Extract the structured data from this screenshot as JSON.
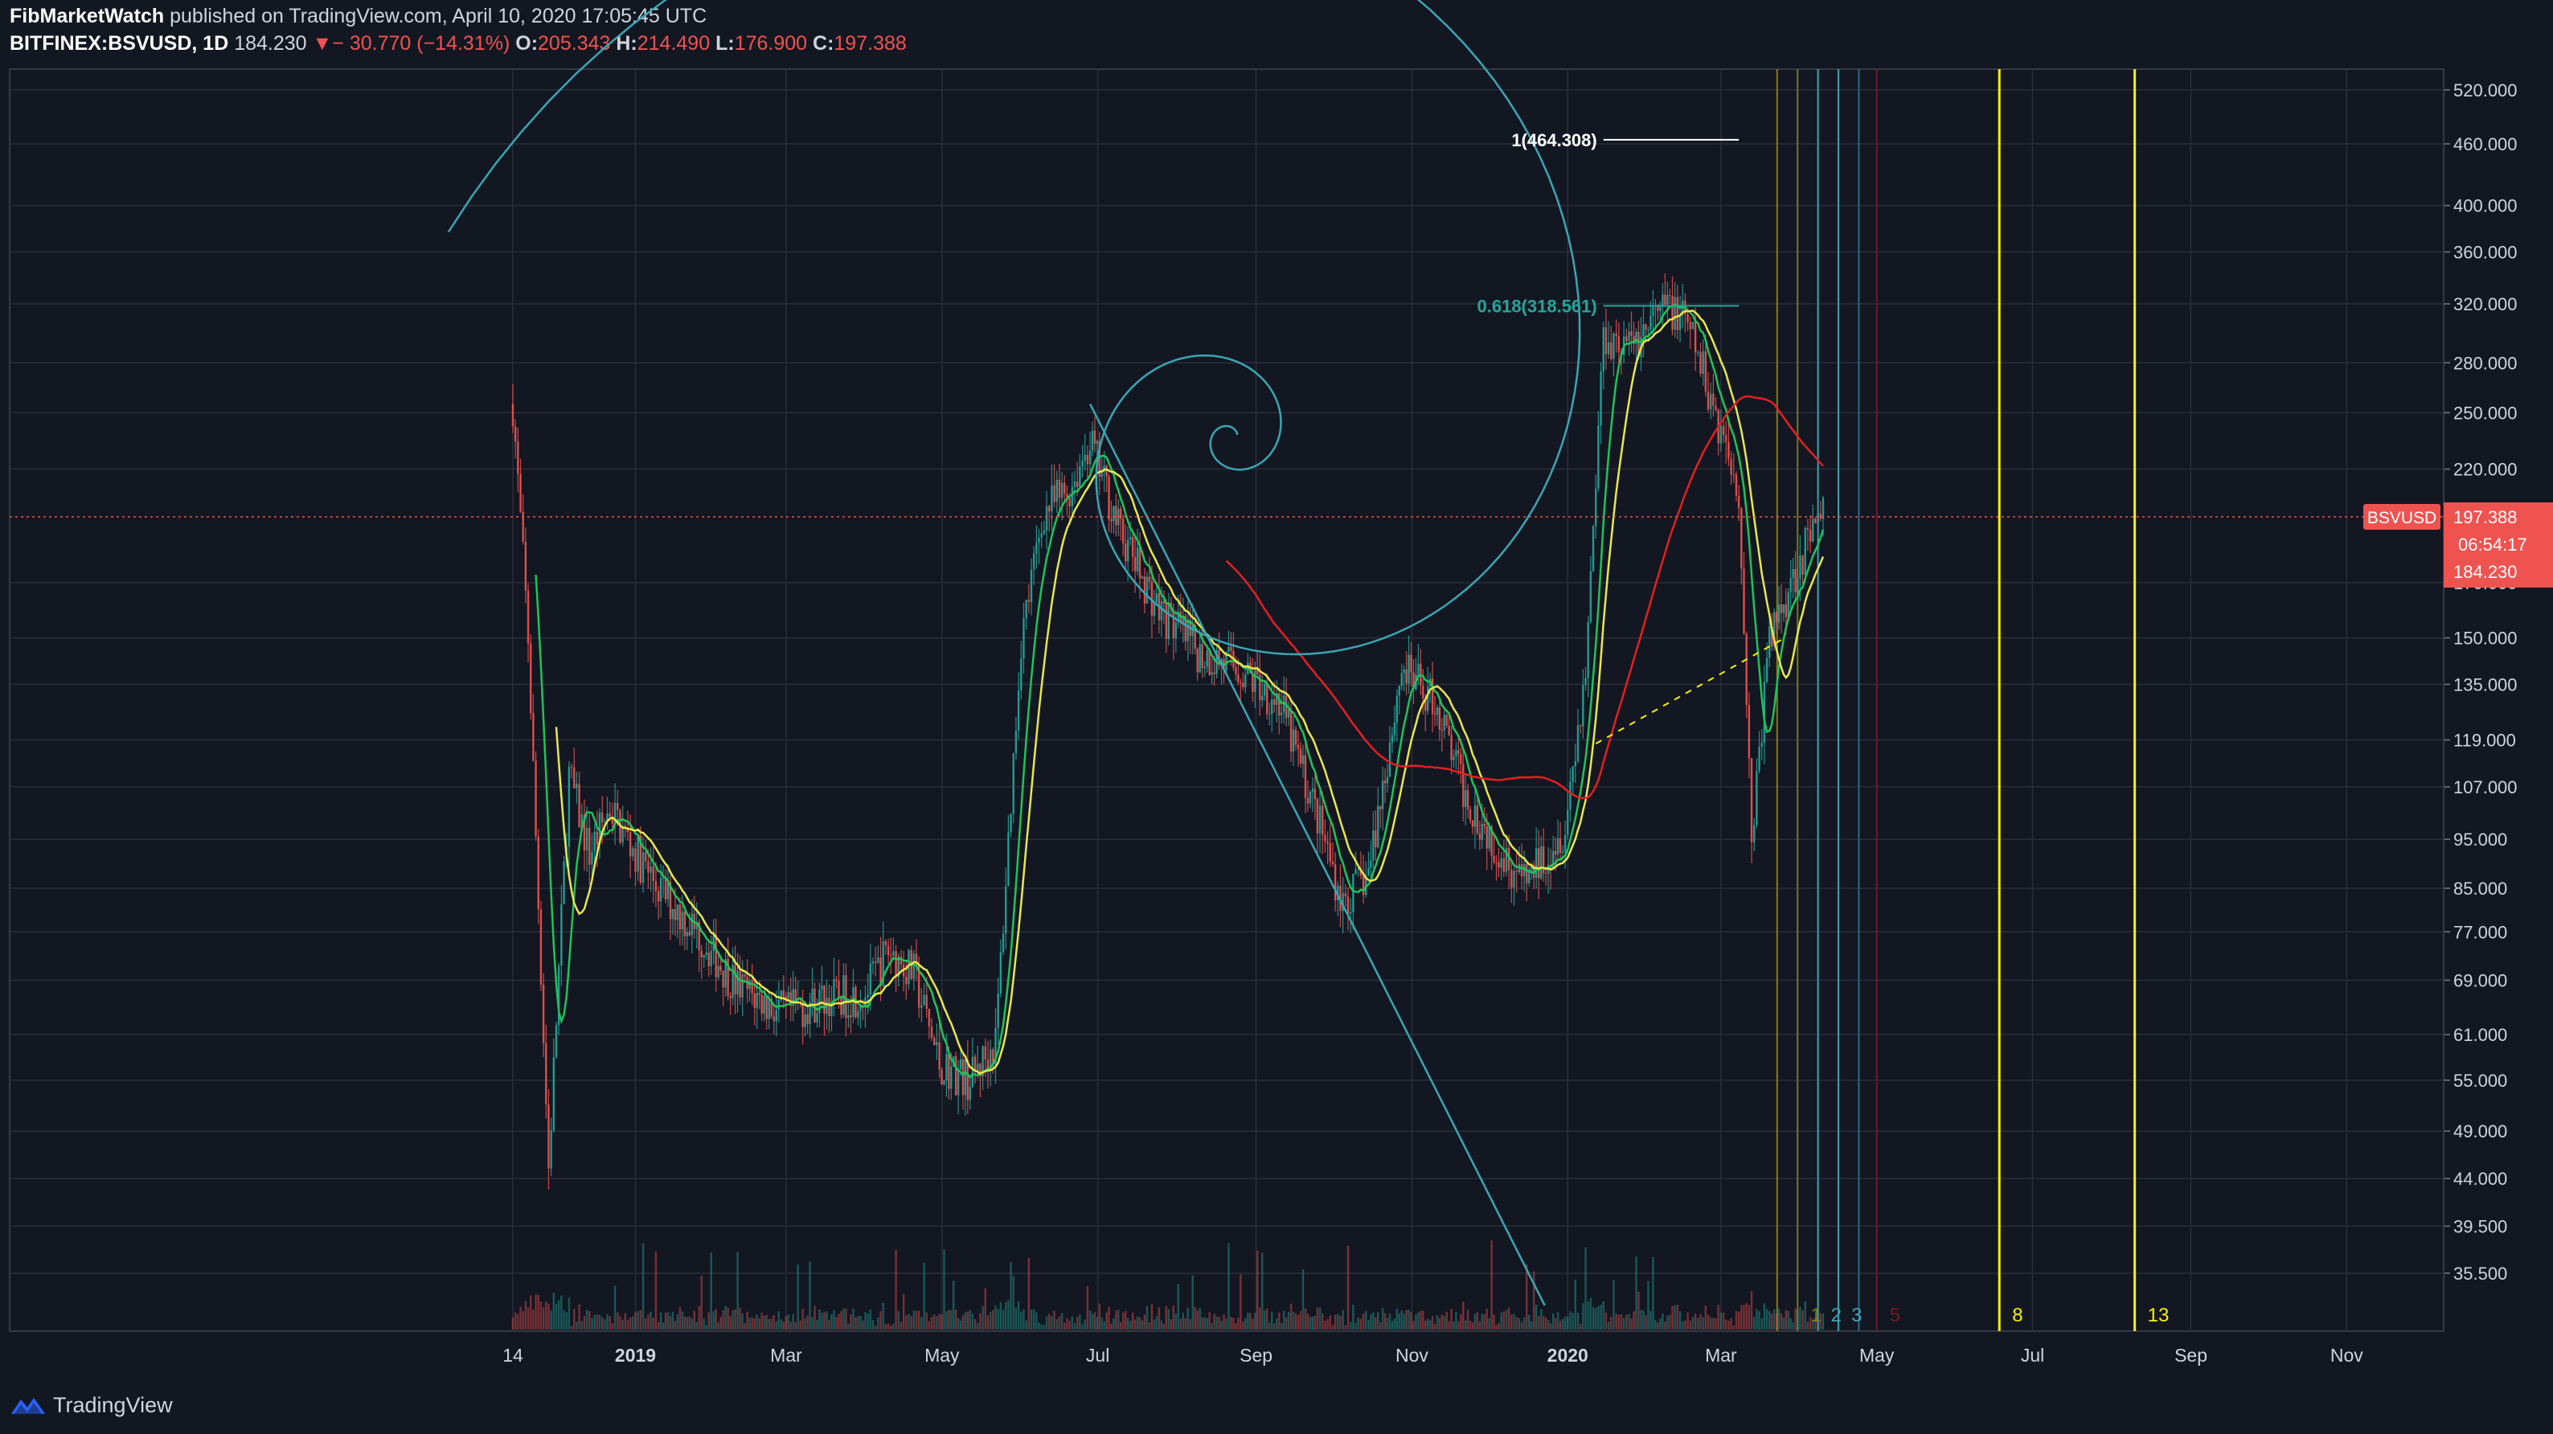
{
  "header": {
    "publisher": "FibMarketWatch",
    "published_text": "published on TradingView.com, April 10, 2020 17:05:45 UTC",
    "symbol": "BITFINEX:BSVUSD, 1D",
    "last": "184.230",
    "change": "− 30.770 (−14.31%)",
    "open_label": "O:",
    "open": "205.343",
    "high_label": "H:",
    "high": "214.490",
    "low_label": "L:",
    "low": "176.900",
    "close_label": "C:",
    "close": "197.388"
  },
  "footer": {
    "brand": "TradingView"
  },
  "colors": {
    "background": "#131722",
    "grid": "#2a2e39",
    "up": "#26a69a",
    "down": "#ef5350",
    "ma_green": "#1fc35a",
    "ma_yellow": "#e8e84a",
    "ma_red": "#e32020",
    "fib": "#3aa6b4",
    "fib_yellow": "#f7f100"
  },
  "chart_data": {
    "type": "candlestick",
    "y_scale": "log",
    "y_ticks": [
      "520.000",
      "460.000",
      "400.000",
      "360.000",
      "320.000",
      "280.000",
      "250.000",
      "220.000",
      "197.388",
      "170.000",
      "150.000",
      "135.000",
      "119.000",
      "107.000",
      "95.000",
      "85.000",
      "77.000",
      "69.000",
      "61.000",
      "55.000",
      "49.000",
      "44.000",
      "39.500",
      "35.500"
    ],
    "x_ticks": [
      "14",
      "2019",
      "Mar",
      "May",
      "Jul",
      "Sep",
      "Nov",
      "2020",
      "Mar",
      "May",
      "Jul",
      "Sep",
      "Nov"
    ],
    "price_label": {
      "symbol": "BSVUSD",
      "value": "197.388",
      "countdown": "06:54:17",
      "last": "184.230"
    },
    "fib_levels": [
      {
        "label": "1(464.308)",
        "value": 464.308
      },
      {
        "label": "0.618(318.561)",
        "value": 318.561
      }
    ],
    "fib_time_labels": [
      "1",
      "2",
      "3",
      "5",
      "8",
      "13"
    ],
    "price_path": [
      [
        "2018-11-14",
        255
      ],
      [
        "2018-11-20",
        150
      ],
      [
        "2018-11-28",
        45
      ],
      [
        "2018-12-06",
        110
      ],
      [
        "2018-12-14",
        92
      ],
      [
        "2018-12-22",
        102
      ],
      [
        "2018-12-31",
        93
      ],
      [
        "2019-01-10",
        85
      ],
      [
        "2019-01-25",
        77
      ],
      [
        "2019-02-10",
        68
      ],
      [
        "2019-02-28",
        64
      ],
      [
        "2019-03-15",
        66
      ],
      [
        "2019-04-01",
        67
      ],
      [
        "2019-04-10",
        74
      ],
      [
        "2019-04-20",
        70
      ],
      [
        "2019-04-30",
        57
      ],
      [
        "2019-05-12",
        55
      ],
      [
        "2019-05-22",
        60
      ],
      [
        "2019-06-01",
        150
      ],
      [
        "2019-06-10",
        200
      ],
      [
        "2019-06-20",
        210
      ],
      [
        "2019-06-28",
        235
      ],
      [
        "2019-07-10",
        190
      ],
      [
        "2019-07-25",
        160
      ],
      [
        "2019-08-10",
        145
      ],
      [
        "2019-08-25",
        140
      ],
      [
        "2019-09-10",
        130
      ],
      [
        "2019-09-25",
        100
      ],
      [
        "2019-10-05",
        82
      ],
      [
        "2019-10-15",
        88
      ],
      [
        "2019-10-28",
        140
      ],
      [
        "2019-11-10",
        130
      ],
      [
        "2019-11-22",
        105
      ],
      [
        "2019-12-05",
        93
      ],
      [
        "2019-12-15",
        86
      ],
      [
        "2019-12-31",
        98
      ],
      [
        "2020-01-08",
        140
      ],
      [
        "2020-01-15",
        300
      ],
      [
        "2020-01-25",
        290
      ],
      [
        "2020-02-10",
        320
      ],
      [
        "2020-02-18",
        300
      ],
      [
        "2020-02-28",
        250
      ],
      [
        "2020-03-08",
        210
      ],
      [
        "2020-03-13",
        95
      ],
      [
        "2020-03-20",
        150
      ],
      [
        "2020-04-01",
        180
      ],
      [
        "2020-04-10",
        197
      ]
    ]
  }
}
